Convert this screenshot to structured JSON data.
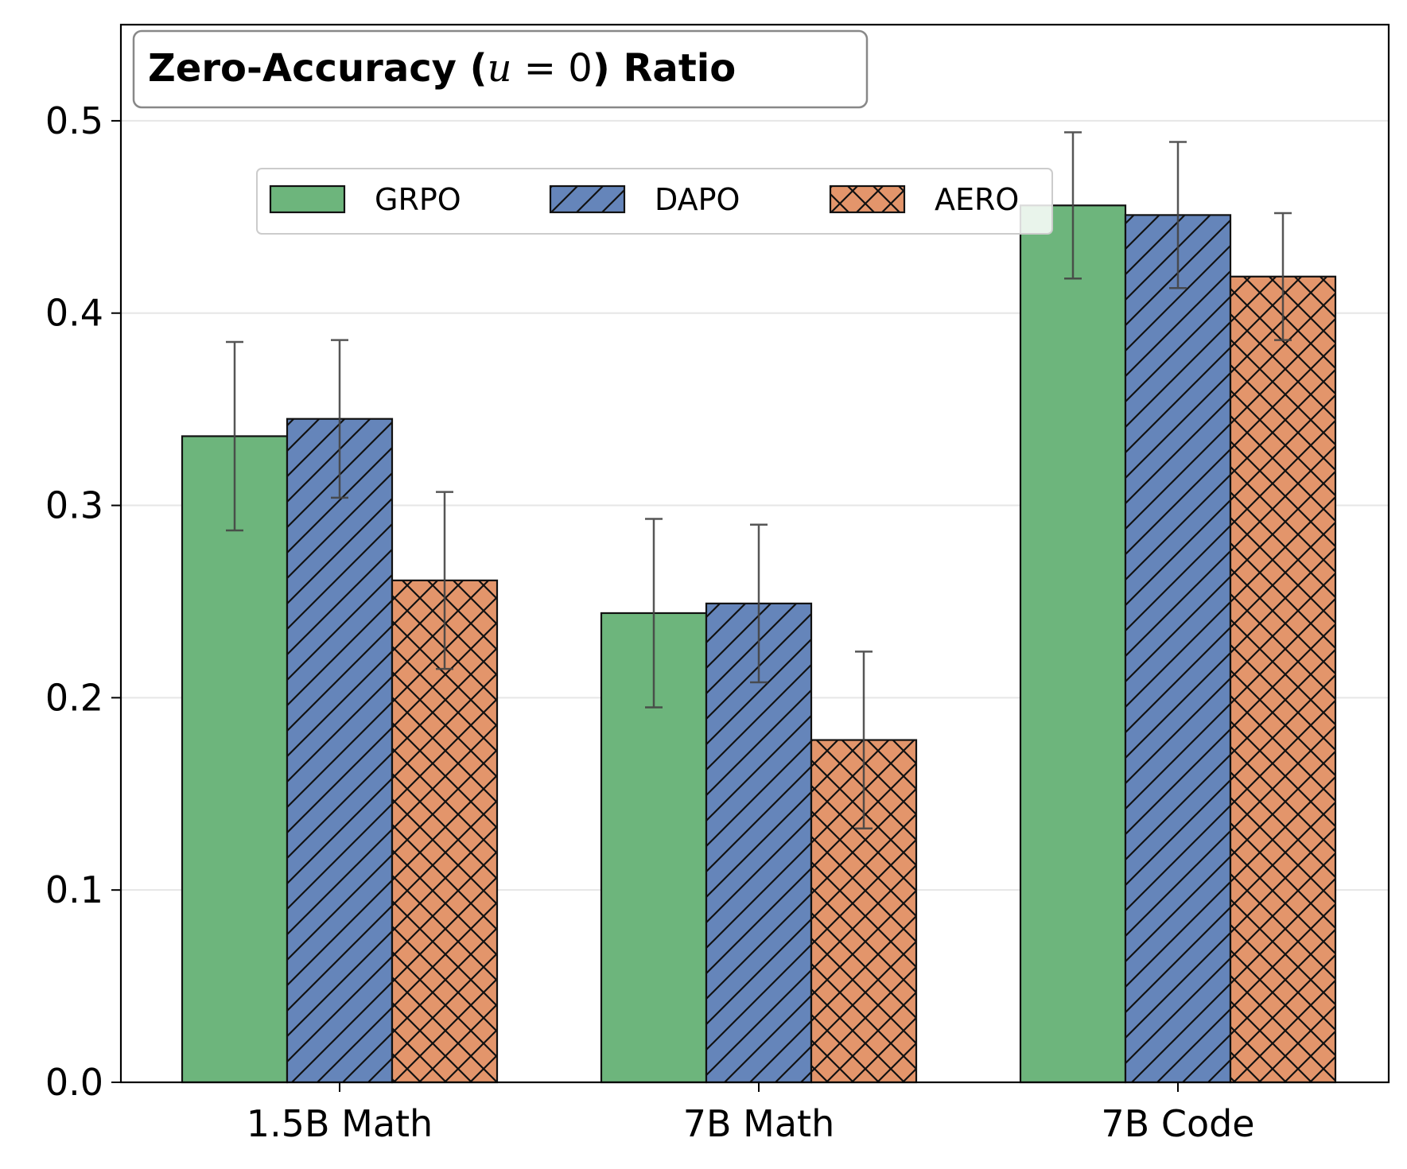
{
  "chart_data": {
    "type": "bar",
    "title_parts": {
      "prefix": "Zero-Accuracy (",
      "var": "u",
      "eq": " = 0",
      "suffix": ") Ratio"
    },
    "categories": [
      "1.5B Math",
      "7B Math",
      "7B Code"
    ],
    "series": [
      {
        "name": "GRPO",
        "values": [
          0.336,
          0.244,
          0.456
        ],
        "errors": [
          0.049,
          0.049,
          0.038
        ],
        "color": "#6db57c",
        "hatch": "none"
      },
      {
        "name": "DAPO",
        "values": [
          0.345,
          0.249,
          0.451
        ],
        "errors": [
          0.041,
          0.041,
          0.038
        ],
        "color": "#6585ba",
        "hatch": "diagonal"
      },
      {
        "name": "AERO",
        "values": [
          0.261,
          0.178,
          0.419
        ],
        "errors": [
          0.046,
          0.046,
          0.033
        ],
        "color": "#e3956b",
        "hatch": "cross"
      }
    ],
    "yticks": [
      "0.0",
      "0.1",
      "0.2",
      "0.3",
      "0.4",
      "0.5"
    ],
    "ylim": [
      0,
      0.55
    ],
    "grid": "horizontal",
    "legend_position": "upper-center",
    "xlabel": "",
    "ylabel": ""
  }
}
